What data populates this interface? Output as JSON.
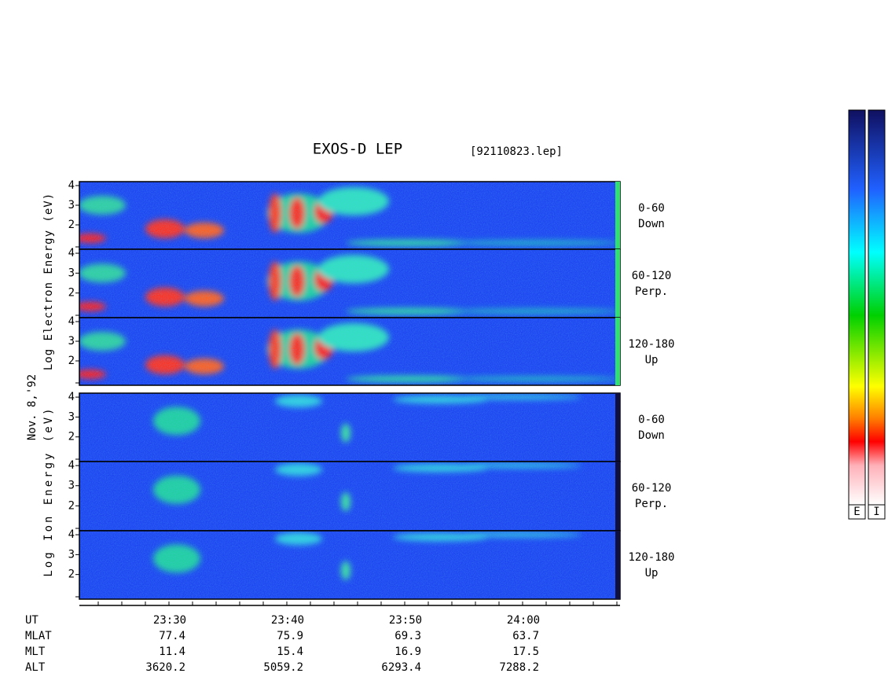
{
  "header": {
    "title": "EXOS-D LEP",
    "file": "[92110823.lep]"
  },
  "date": "Nov. 8,'92",
  "energy_axis": {
    "ylim": [
      0.88,
      4.2
    ],
    "yticks": [
      2,
      3,
      4
    ]
  },
  "groups": [
    {
      "name": "electron",
      "y_label": "Log Electron Energy (eV)"
    },
    {
      "name": "ion",
      "y_label": "Log Ion Energy (eV)"
    }
  ],
  "panels": [
    {
      "group": "electron",
      "label": [
        "0-60",
        "Down"
      ]
    },
    {
      "group": "electron",
      "label": [
        "60-120",
        "Perp."
      ]
    },
    {
      "group": "electron",
      "label": [
        "120-180",
        "Up"
      ]
    },
    {
      "group": "ion",
      "label": [
        "0-60",
        "Down"
      ]
    },
    {
      "group": "ion",
      "label": [
        "60-120",
        "Perp."
      ]
    },
    {
      "group": "ion",
      "label": [
        "120-180",
        "Up"
      ]
    }
  ],
  "orbit": {
    "rows": [
      {
        "name": "UT",
        "values": [
          "23:30",
          "23:40",
          "23:50",
          "24:00"
        ]
      },
      {
        "name": "MLAT",
        "values": [
          "77.4",
          "75.9",
          "69.3",
          "63.7"
        ]
      },
      {
        "name": "MLT",
        "values": [
          "11.4",
          "15.4",
          "16.9",
          "17.5"
        ]
      },
      {
        "name": "ALT",
        "values": [
          "3620.2",
          "5059.2",
          "6293.4",
          "7288.2"
        ]
      }
    ]
  },
  "colorbars": [
    {
      "label": "E"
    },
    {
      "label": "I"
    }
  ]
}
